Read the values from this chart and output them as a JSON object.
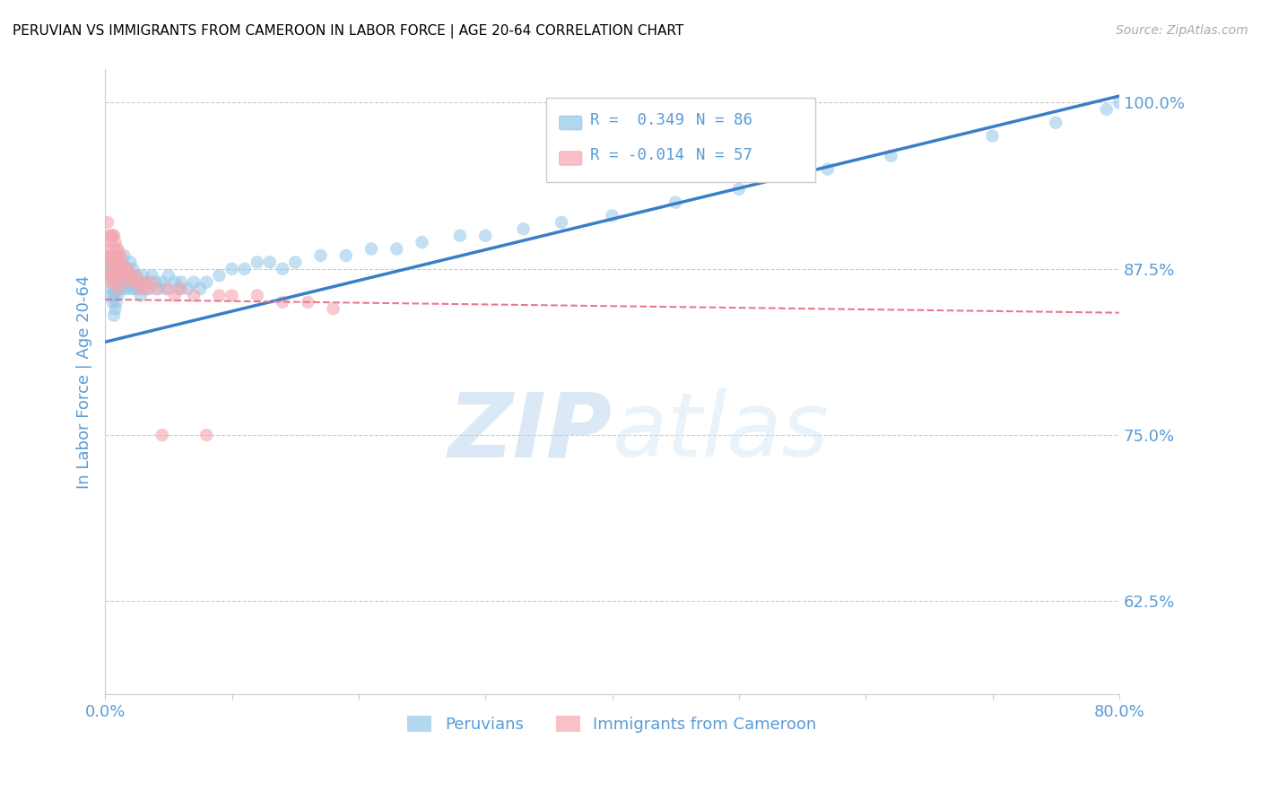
{
  "title": "PERUVIAN VS IMMIGRANTS FROM CAMEROON IN LABOR FORCE | AGE 20-64 CORRELATION CHART",
  "source": "Source: ZipAtlas.com",
  "ylabel": "In Labor Force | Age 20-64",
  "xlim": [
    0.0,
    0.8
  ],
  "ylim": [
    0.555,
    1.025
  ],
  "yticks": [
    0.625,
    0.75,
    0.875,
    1.0
  ],
  "ytick_labels": [
    "62.5%",
    "75.0%",
    "87.5%",
    "100.0%"
  ],
  "xticks": [
    0.0,
    0.1,
    0.2,
    0.3,
    0.4,
    0.5,
    0.6,
    0.7,
    0.8
  ],
  "xtick_labels": [
    "0.0%",
    "",
    "",
    "",
    "",
    "",
    "",
    "",
    "80.0%"
  ],
  "blue_color": "#93c6e8",
  "pink_color": "#f4a7b0",
  "trend_blue_color": "#3a7dc9",
  "trend_pink_color": "#e87a8a",
  "legend_R_blue": "R =  0.349",
  "legend_N_blue": "N = 86",
  "legend_R_pink": "R = -0.014",
  "legend_N_pink": "N = 57",
  "legend_label_blue": "Peruvians",
  "legend_label_pink": "Immigrants from Cameroon",
  "watermark_zip": "ZIP",
  "watermark_atlas": "atlas",
  "blue_scatter_x": [
    0.002,
    0.003,
    0.004,
    0.004,
    0.005,
    0.005,
    0.006,
    0.006,
    0.007,
    0.007,
    0.007,
    0.008,
    0.008,
    0.008,
    0.009,
    0.009,
    0.009,
    0.01,
    0.01,
    0.01,
    0.011,
    0.011,
    0.012,
    0.012,
    0.013,
    0.013,
    0.014,
    0.014,
    0.015,
    0.015,
    0.016,
    0.016,
    0.017,
    0.018,
    0.019,
    0.02,
    0.02,
    0.021,
    0.022,
    0.023,
    0.025,
    0.026,
    0.027,
    0.028,
    0.03,
    0.031,
    0.033,
    0.035,
    0.037,
    0.04,
    0.042,
    0.045,
    0.048,
    0.05,
    0.055,
    0.058,
    0.06,
    0.065,
    0.07,
    0.075,
    0.08,
    0.09,
    0.1,
    0.11,
    0.12,
    0.13,
    0.14,
    0.15,
    0.17,
    0.19,
    0.21,
    0.23,
    0.25,
    0.28,
    0.3,
    0.33,
    0.36,
    0.4,
    0.45,
    0.5,
    0.57,
    0.62,
    0.7,
    0.75,
    0.79,
    0.8
  ],
  "blue_scatter_y": [
    0.87,
    0.88,
    0.875,
    0.855,
    0.88,
    0.86,
    0.865,
    0.85,
    0.87,
    0.855,
    0.84,
    0.875,
    0.86,
    0.845,
    0.88,
    0.865,
    0.85,
    0.88,
    0.87,
    0.855,
    0.875,
    0.86,
    0.88,
    0.865,
    0.875,
    0.86,
    0.88,
    0.865,
    0.885,
    0.87,
    0.875,
    0.86,
    0.87,
    0.875,
    0.865,
    0.88,
    0.86,
    0.87,
    0.875,
    0.86,
    0.87,
    0.86,
    0.865,
    0.855,
    0.87,
    0.86,
    0.865,
    0.86,
    0.87,
    0.865,
    0.86,
    0.865,
    0.86,
    0.87,
    0.865,
    0.86,
    0.865,
    0.86,
    0.865,
    0.86,
    0.865,
    0.87,
    0.875,
    0.875,
    0.88,
    0.88,
    0.875,
    0.88,
    0.885,
    0.885,
    0.89,
    0.89,
    0.895,
    0.9,
    0.9,
    0.905,
    0.91,
    0.915,
    0.925,
    0.935,
    0.95,
    0.96,
    0.975,
    0.985,
    0.995,
    1.0
  ],
  "pink_scatter_x": [
    0.001,
    0.002,
    0.002,
    0.003,
    0.003,
    0.003,
    0.004,
    0.004,
    0.004,
    0.005,
    0.005,
    0.005,
    0.006,
    0.006,
    0.006,
    0.007,
    0.007,
    0.007,
    0.008,
    0.008,
    0.008,
    0.009,
    0.009,
    0.01,
    0.01,
    0.01,
    0.011,
    0.011,
    0.012,
    0.012,
    0.013,
    0.014,
    0.015,
    0.016,
    0.017,
    0.018,
    0.02,
    0.022,
    0.024,
    0.026,
    0.028,
    0.03,
    0.033,
    0.036,
    0.04,
    0.045,
    0.05,
    0.055,
    0.06,
    0.07,
    0.08,
    0.09,
    0.1,
    0.12,
    0.14,
    0.16,
    0.18
  ],
  "pink_scatter_y": [
    0.88,
    0.91,
    0.89,
    0.9,
    0.885,
    0.87,
    0.895,
    0.88,
    0.865,
    0.9,
    0.885,
    0.87,
    0.9,
    0.885,
    0.87,
    0.9,
    0.885,
    0.87,
    0.895,
    0.88,
    0.865,
    0.89,
    0.875,
    0.89,
    0.875,
    0.86,
    0.885,
    0.87,
    0.885,
    0.87,
    0.88,
    0.875,
    0.865,
    0.875,
    0.87,
    0.875,
    0.87,
    0.865,
    0.87,
    0.865,
    0.86,
    0.865,
    0.86,
    0.865,
    0.86,
    0.75,
    0.86,
    0.855,
    0.86,
    0.855,
    0.75,
    0.855,
    0.855,
    0.855,
    0.85,
    0.85,
    0.845
  ],
  "blue_trend_x": [
    0.0,
    0.8
  ],
  "blue_trend_y": [
    0.82,
    1.005
  ],
  "pink_trend_x": [
    0.0,
    0.8
  ],
  "pink_trend_y": [
    0.852,
    0.842
  ],
  "background_color": "#ffffff",
  "grid_color": "#cccccc",
  "title_color": "#000000",
  "axis_color": "#5b9bd5",
  "source_color": "#aaaaaa"
}
